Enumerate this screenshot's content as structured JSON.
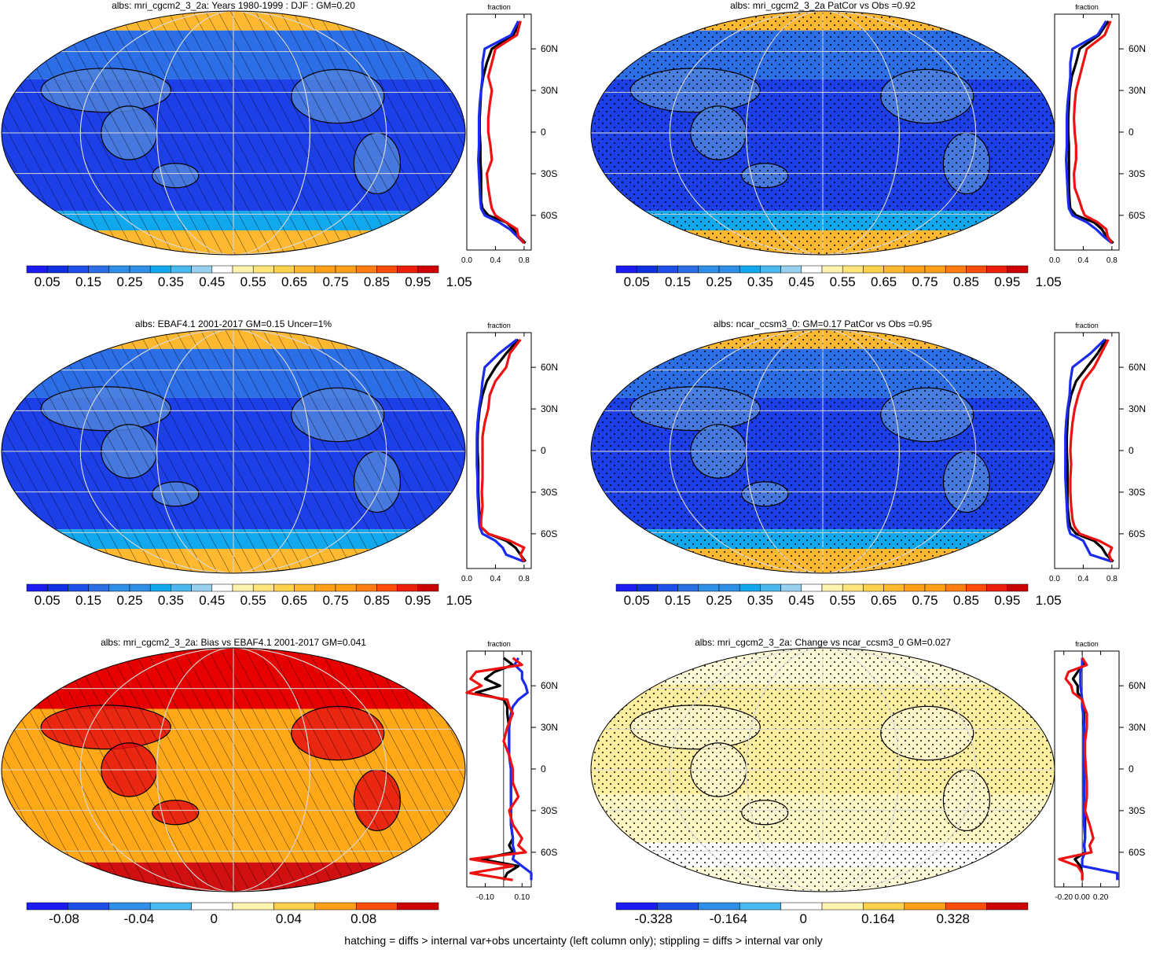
{
  "footer": "hatching = diffs > internal var+obs uncertainty (left column only); stippling = diffs > internal var only",
  "palette": {
    "diverging_16": [
      "#1b1bf2",
      "#0f2fe0",
      "#1d4fe8",
      "#2b6ee6",
      "#2f8ee6",
      "#12a8ee",
      "#4ab9f0",
      "#98d0f0",
      "#ffffff",
      "#fff3b0",
      "#ffe57a",
      "#ffd24d",
      "#ffb931",
      "#ffa018",
      "#ff7d10",
      "#ff4c0a",
      "#ee1e0c",
      "#cc0000"
    ],
    "line_model": "#000000",
    "line_obs_blue": "#1a2bef",
    "line_obs_red": "#ee1111",
    "hatch": "#000000",
    "grid": "#d8d8d8"
  },
  "lat_ticks": [
    "60N",
    "30N",
    "0",
    "30S",
    "60S"
  ],
  "side_axis_title": "fraction",
  "chart_data": [
    {
      "type": "heatmap",
      "title": "albs: mri_cgcm2_3_2a: Years 1980-1999 : DJF : GM=0.20",
      "map_style": "base_hatched",
      "colorbar_labels": [
        "0.05",
        "0.15",
        "0.25",
        "0.35",
        "0.45",
        "0.55",
        "0.65",
        "0.75",
        "0.85",
        "0.95",
        "1.05"
      ],
      "colorbar_levels": [
        0.05,
        0.1,
        0.15,
        0.2,
        0.25,
        0.3,
        0.35,
        0.4,
        0.45,
        0.5,
        0.55,
        0.6,
        0.65,
        0.7,
        0.75,
        0.8,
        0.85,
        0.9,
        0.95,
        1.0,
        1.05
      ],
      "zonal_profile": {
        "xlabels": [
          "0.0",
          "0.4",
          "0.8"
        ],
        "xlim": [
          0,
          0.9
        ],
        "lat": [
          80,
          70,
          60,
          50,
          40,
          30,
          20,
          10,
          0,
          -10,
          -20,
          -30,
          -40,
          -50,
          -55,
          -60,
          -65,
          -70,
          -75,
          -80
        ],
        "series": [
          {
            "color": "line_model",
            "values": [
              0.75,
              0.65,
              0.35,
              0.28,
              0.23,
              0.2,
              0.19,
              0.18,
              0.18,
              0.19,
              0.19,
              0.2,
              0.2,
              0.2,
              0.22,
              0.3,
              0.55,
              0.65,
              0.72,
              0.82
            ]
          },
          {
            "color": "line_obs_blue",
            "values": [
              0.72,
              0.62,
              0.25,
              0.22,
              0.22,
              0.2,
              0.18,
              0.17,
              0.17,
              0.17,
              0.16,
              0.17,
              0.18,
              0.19,
              0.2,
              0.25,
              0.45,
              0.6,
              0.7,
              0.8
            ]
          },
          {
            "color": "line_obs_red",
            "values": [
              0.75,
              0.7,
              0.4,
              0.35,
              0.3,
              0.35,
              0.32,
              0.3,
              0.3,
              0.33,
              0.35,
              0.28,
              0.3,
              0.33,
              0.35,
              0.4,
              0.55,
              0.7,
              0.72,
              0.8
            ]
          }
        ]
      }
    },
    {
      "type": "heatmap",
      "title": "albs: mri_cgcm2_3_2a PatCor vs Obs =0.92",
      "map_style": "base_stippled",
      "colorbar_labels": [
        "0.05",
        "0.15",
        "0.25",
        "0.35",
        "0.45",
        "0.55",
        "0.65",
        "0.75",
        "0.85",
        "0.95",
        "1.05"
      ],
      "colorbar_levels": [
        0.05,
        0.1,
        0.15,
        0.2,
        0.25,
        0.3,
        0.35,
        0.4,
        0.45,
        0.5,
        0.55,
        0.6,
        0.65,
        0.7,
        0.75,
        0.8,
        0.85,
        0.9,
        0.95,
        1.0,
        1.05
      ],
      "zonal_profile": {
        "xlabels": [
          "0.0",
          "0.4",
          "0.8"
        ],
        "xlim": [
          0,
          0.9
        ],
        "lat": [
          80,
          70,
          60,
          50,
          40,
          30,
          20,
          10,
          0,
          -10,
          -20,
          -30,
          -40,
          -50,
          -55,
          -60,
          -65,
          -70,
          -75,
          -80
        ],
        "series": [
          {
            "color": "line_model",
            "values": [
              0.75,
              0.62,
              0.35,
              0.3,
              0.24,
              0.21,
              0.2,
              0.19,
              0.19,
              0.2,
              0.2,
              0.2,
              0.2,
              0.21,
              0.22,
              0.3,
              0.55,
              0.66,
              0.72,
              0.82
            ]
          },
          {
            "color": "line_obs_blue",
            "values": [
              0.72,
              0.6,
              0.25,
              0.22,
              0.22,
              0.2,
              0.18,
              0.17,
              0.17,
              0.17,
              0.16,
              0.17,
              0.18,
              0.19,
              0.2,
              0.25,
              0.45,
              0.58,
              0.68,
              0.8
            ]
          },
          {
            "color": "line_obs_red",
            "values": [
              0.78,
              0.7,
              0.45,
              0.4,
              0.35,
              0.3,
              0.28,
              0.27,
              0.28,
              0.3,
              0.3,
              0.27,
              0.28,
              0.35,
              0.38,
              0.42,
              0.6,
              0.72,
              0.74,
              0.8
            ]
          }
        ]
      }
    },
    {
      "type": "heatmap",
      "title": "albs: EBAF4.1 2001-2017 GM=0.15 Uncer=1%",
      "map_style": "base_hatched",
      "colorbar_labels": [
        "0.05",
        "0.15",
        "0.25",
        "0.35",
        "0.45",
        "0.55",
        "0.65",
        "0.75",
        "0.85",
        "0.95",
        "1.05"
      ],
      "colorbar_levels": [
        0.05,
        0.1,
        0.15,
        0.2,
        0.25,
        0.3,
        0.35,
        0.4,
        0.45,
        0.5,
        0.55,
        0.6,
        0.65,
        0.7,
        0.75,
        0.8,
        0.85,
        0.9,
        0.95,
        1.0,
        1.05
      ],
      "zonal_profile": {
        "xlabels": [
          "0.0",
          "0.4",
          "0.8"
        ],
        "xlim": [
          0,
          0.9
        ],
        "lat": [
          80,
          70,
          60,
          50,
          40,
          30,
          20,
          10,
          0,
          -10,
          -20,
          -30,
          -40,
          -50,
          -55,
          -60,
          -65,
          -70,
          -75,
          -80
        ],
        "series": [
          {
            "color": "line_model",
            "values": [
              0.72,
              0.55,
              0.4,
              0.28,
              0.22,
              0.18,
              0.16,
              0.15,
              0.15,
              0.16,
              0.16,
              0.16,
              0.17,
              0.18,
              0.2,
              0.3,
              0.55,
              0.68,
              0.75,
              0.82
            ]
          },
          {
            "color": "line_obs_blue",
            "values": [
              0.7,
              0.45,
              0.25,
              0.22,
              0.2,
              0.17,
              0.15,
              0.14,
              0.14,
              0.14,
              0.15,
              0.15,
              0.16,
              0.17,
              0.18,
              0.22,
              0.4,
              0.5,
              0.55,
              0.8
            ]
          },
          {
            "color": "line_obs_red",
            "values": [
              0.75,
              0.6,
              0.55,
              0.4,
              0.32,
              0.3,
              0.25,
              0.22,
              0.22,
              0.22,
              0.22,
              0.21,
              0.22,
              0.2,
              0.2,
              0.3,
              0.6,
              0.8,
              0.75,
              0.8
            ]
          }
        ]
      }
    },
    {
      "type": "heatmap",
      "title": "albs: ncar_ccsm3_0: GM=0.17 PatCor vs Obs =0.95",
      "map_style": "base_stippled",
      "colorbar_labels": [
        "0.05",
        "0.15",
        "0.25",
        "0.35",
        "0.45",
        "0.55",
        "0.65",
        "0.75",
        "0.85",
        "0.95",
        "1.05"
      ],
      "colorbar_levels": [
        0.05,
        0.1,
        0.15,
        0.2,
        0.25,
        0.3,
        0.35,
        0.4,
        0.45,
        0.5,
        0.55,
        0.6,
        0.65,
        0.7,
        0.75,
        0.8,
        0.85,
        0.9,
        0.95,
        1.0,
        1.05
      ],
      "zonal_profile": {
        "xlabels": [
          "0.0",
          "0.4",
          "0.8"
        ],
        "xlim": [
          0,
          0.9
        ],
        "lat": [
          80,
          70,
          60,
          50,
          40,
          30,
          20,
          10,
          0,
          -10,
          -20,
          -30,
          -40,
          -50,
          -55,
          -60,
          -65,
          -70,
          -75,
          -80
        ],
        "series": [
          {
            "color": "line_model",
            "values": [
              0.72,
              0.6,
              0.45,
              0.3,
              0.23,
              0.19,
              0.18,
              0.17,
              0.17,
              0.18,
              0.18,
              0.18,
              0.18,
              0.2,
              0.22,
              0.3,
              0.55,
              0.66,
              0.72,
              0.82
            ]
          },
          {
            "color": "line_obs_blue",
            "values": [
              0.7,
              0.5,
              0.25,
              0.22,
              0.21,
              0.18,
              0.16,
              0.15,
              0.15,
              0.15,
              0.15,
              0.16,
              0.17,
              0.18,
              0.19,
              0.22,
              0.4,
              0.45,
              0.5,
              0.8
            ]
          },
          {
            "color": "line_obs_red",
            "values": [
              0.75,
              0.65,
              0.55,
              0.4,
              0.33,
              0.28,
              0.25,
              0.23,
              0.22,
              0.23,
              0.22,
              0.22,
              0.23,
              0.25,
              0.28,
              0.35,
              0.62,
              0.8,
              0.76,
              0.8
            ]
          }
        ]
      }
    },
    {
      "type": "heatmap",
      "title": "albs: mri_cgcm2_3_2a: Bias vs EBAF4.1 2001-2017 GM=0.041",
      "map_style": "bias_hatched",
      "colorbar_labels": [
        "-0.08",
        "-0.04",
        "0",
        "0.04",
        "0.08"
      ],
      "colorbar_levels": [
        -0.1,
        -0.08,
        -0.06,
        -0.04,
        -0.02,
        0,
        0.02,
        0.04,
        0.06,
        0.08,
        0.1
      ],
      "zonal_profile": {
        "xlabels": [
          "-0.10",
          "0.10"
        ],
        "xlim": [
          -0.2,
          0.15
        ],
        "lat": [
          80,
          75,
          70,
          65,
          60,
          55,
          50,
          45,
          40,
          30,
          20,
          10,
          0,
          -10,
          -20,
          -30,
          -40,
          -50,
          -55,
          -60,
          -65,
          -70,
          -75,
          -80
        ],
        "series": [
          {
            "color": "line_model",
            "values": [
              0.0,
              0.05,
              -0.05,
              -0.1,
              -0.02,
              -0.15,
              0.0,
              0.02,
              0.02,
              0.03,
              0.03,
              0.03,
              0.04,
              0.04,
              0.04,
              0.04,
              0.04,
              0.05,
              0.03,
              0.05,
              -0.12,
              0.08,
              0.02,
              0.0
            ]
          },
          {
            "color": "line_obs_blue",
            "values": [
              0.08,
              0.06,
              0.1,
              0.1,
              0.12,
              0.13,
              0.08,
              0.05,
              0.04,
              0.03,
              0.03,
              0.03,
              0.04,
              0.04,
              0.04,
              0.04,
              0.04,
              0.05,
              0.05,
              0.06,
              0.05,
              0.1,
              0.15,
              0.15
            ]
          },
          {
            "color": "line_obs_red",
            "values": [
              0.05,
              0.1,
              -0.15,
              -0.18,
              -0.12,
              -0.2,
              0.02,
              0.03,
              0.05,
              0.02,
              0.0,
              0.03,
              0.05,
              0.05,
              0.08,
              0.03,
              0.05,
              0.1,
              0.08,
              0.12,
              -0.18,
              0.05,
              -0.18,
              0.05
            ]
          }
        ]
      }
    },
    {
      "type": "heatmap",
      "title": "albs: mri_cgcm2_3_2a: Change vs ncar_ccsm3_0 GM=0.027",
      "map_style": "change_stippled",
      "colorbar_labels": [
        "-0.328",
        "-0.164",
        "0",
        "0.164",
        "0.328"
      ],
      "colorbar_levels": [
        -0.41,
        -0.328,
        -0.246,
        -0.164,
        -0.082,
        0,
        0.082,
        0.164,
        0.246,
        0.328,
        0.41
      ],
      "zonal_profile": {
        "xlabels": [
          "-0.20",
          "0.00",
          "0.20"
        ],
        "xlim": [
          -0.3,
          0.4
        ],
        "lat": [
          80,
          75,
          70,
          65,
          60,
          55,
          50,
          45,
          40,
          30,
          20,
          10,
          0,
          -10,
          -20,
          -30,
          -40,
          -50,
          -55,
          -60,
          -65,
          -70,
          -75,
          -80
        ],
        "series": [
          {
            "color": "line_model",
            "values": [
              0.0,
              0.02,
              -0.05,
              -0.1,
              -0.05,
              -0.05,
              0.0,
              0.0,
              0.02,
              0.02,
              0.02,
              0.02,
              0.02,
              0.02,
              0.02,
              0.03,
              0.03,
              0.03,
              0.02,
              0.03,
              -0.08,
              -0.02,
              0.0,
              0.0
            ]
          },
          {
            "color": "line_obs_blue",
            "values": [
              0.0,
              0.0,
              -0.02,
              -0.02,
              -0.02,
              -0.01,
              0.0,
              0.0,
              0.01,
              0.02,
              0.02,
              0.02,
              0.02,
              0.02,
              0.02,
              0.02,
              0.02,
              0.03,
              0.02,
              0.03,
              0.0,
              0.0,
              0.38,
              0.38
            ]
          },
          {
            "color": "line_obs_red",
            "values": [
              0.0,
              0.05,
              -0.15,
              -0.18,
              -0.12,
              -0.1,
              0.0,
              0.02,
              0.05,
              0.05,
              0.03,
              0.03,
              0.04,
              0.05,
              0.05,
              0.03,
              0.08,
              0.12,
              0.08,
              0.1,
              -0.25,
              -0.05,
              0.0,
              0.0
            ]
          }
        ]
      }
    }
  ]
}
